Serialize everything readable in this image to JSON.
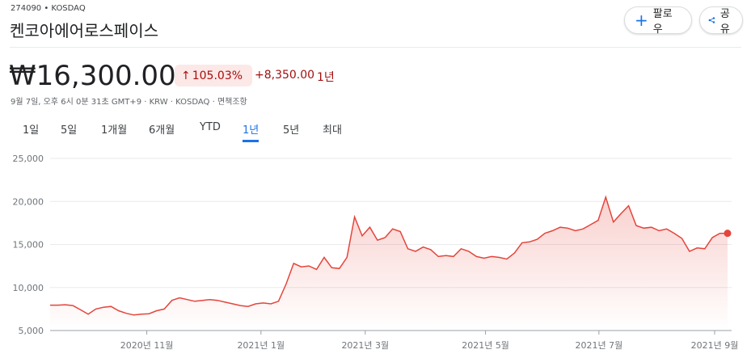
{
  "header": {
    "ticker": "274090 • KOSDAQ",
    "name": "켄코아에어로스페이스",
    "price": "₩16,300.00",
    "change_pct": "105.03%",
    "change_abs": "+8,350.00",
    "period": "1년",
    "meta": "9월 7일, 오후 6시 0분 31초 GMT+9 · KRW · KOSDAQ · 면책조항",
    "follow": "팔로우",
    "share": "공유"
  },
  "tabs": [
    "1일",
    "5일",
    "1개월",
    "6개월",
    "YTD",
    "1년",
    "5년",
    "최대"
  ],
  "chart_data": {
    "type": "line",
    "color": "#e4453b",
    "values": [
      7950,
      7950,
      8000,
      7900,
      7400,
      6900,
      7500,
      7700,
      7800,
      7300,
      7000,
      6800,
      6900,
      6950,
      7300,
      7500,
      8500,
      8800,
      8600,
      8400,
      8500,
      8600,
      8500,
      8300,
      8100,
      7900,
      7800,
      8100,
      8200,
      8100,
      8400,
      10400,
      12800,
      12400,
      12500,
      12100,
      13500,
      12300,
      12200,
      13500,
      18200,
      16000,
      17000,
      15500,
      15800,
      16800,
      16500,
      14500,
      14200,
      14700,
      14400,
      13600,
      13700,
      13600,
      14500,
      14200,
      13600,
      13400,
      13600,
      13500,
      13300,
      14000,
      15200,
      15300,
      15600,
      16300,
      16600,
      17000,
      16900,
      16600,
      16800,
      17300,
      17800,
      20500,
      17600,
      18600,
      19500,
      17200,
      16900,
      17000,
      16600,
      16800,
      16300,
      15700,
      14200,
      14600,
      14500,
      15800,
      16300,
      16300
    ],
    "xlim": [
      0,
      89
    ],
    "xticks": [
      {
        "value": 12.7,
        "label": "2020년 11월"
      },
      {
        "value": 27.7,
        "label": "2021년 1월"
      },
      {
        "value": 41.4,
        "label": "2021년 3월"
      },
      {
        "value": 57.2,
        "label": "2021년 5월"
      },
      {
        "value": 72.1,
        "label": "2021년 7월"
      },
      {
        "value": 87.3,
        "label": "2021년 9월"
      }
    ],
    "ylim": [
      5000,
      25000
    ],
    "yticks": [
      {
        "value": 5000,
        "label": "5,000"
      },
      {
        "value": 10000,
        "label": "10,000"
      },
      {
        "value": 15000,
        "label": "15,000"
      },
      {
        "value": 20000,
        "label": "20,000"
      },
      {
        "value": 25000,
        "label": "25,000"
      }
    ],
    "grid": true
  }
}
